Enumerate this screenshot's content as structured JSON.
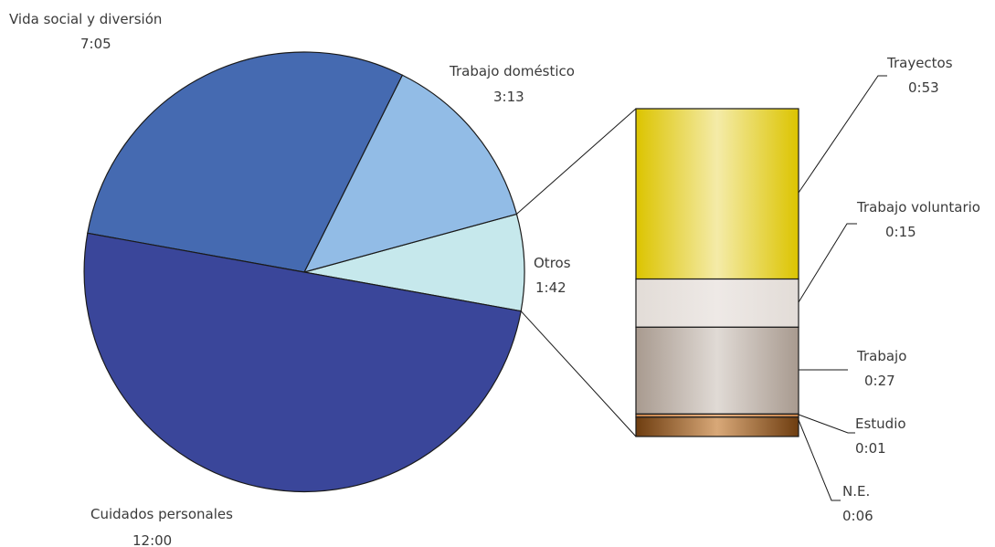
{
  "chart_data": {
    "type": "pie",
    "units": "hh:mm",
    "pie": {
      "slices": [
        {
          "name": "Vida social y diversión",
          "label": "7:05",
          "minutes": 425,
          "color": "#456ab1"
        },
        {
          "name": "Trabajo doméstico",
          "label": "3:13",
          "minutes": 193,
          "color": "#92bce6"
        },
        {
          "name": "Otros",
          "label": "1:42",
          "minutes": 102,
          "color": "#c6e8ec"
        },
        {
          "name": "Cuidados personales",
          "label": "12:00",
          "minutes": 720,
          "color": "#3a469a"
        }
      ]
    },
    "bar": {
      "parent": "Otros",
      "segments": [
        {
          "name": "Trayectos",
          "label": "0:53",
          "minutes": 53,
          "colors": [
            "#dcc400",
            "#f4eba8"
          ]
        },
        {
          "name": "Trabajo voluntario",
          "label": "0:15",
          "minutes": 15,
          "colors": [
            "#e2dcd7",
            "#eee9e6"
          ]
        },
        {
          "name": "Trabajo",
          "label": "0:27",
          "minutes": 27,
          "colors": [
            "#a89a8f",
            "#e0dad5"
          ]
        },
        {
          "name": "Estudio",
          "label": "0:01",
          "minutes": 1,
          "colors": [
            "#c9844a",
            "#e6b080"
          ]
        },
        {
          "name": "N.E.",
          "label": "0:06",
          "minutes": 6,
          "colors": [
            "#6e3d10",
            "#d8a878"
          ]
        }
      ]
    }
  }
}
